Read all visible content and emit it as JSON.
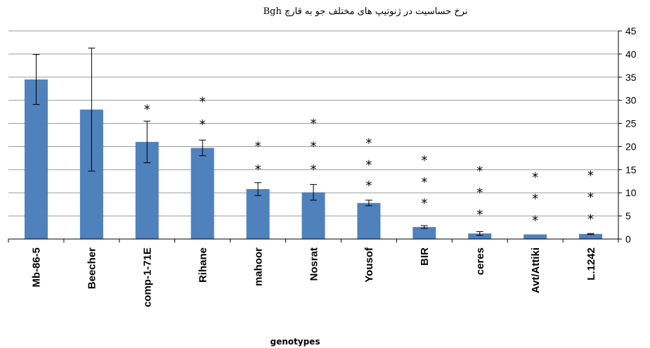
{
  "chart_data": {
    "type": "bar",
    "title": "نرخ حساسیت در ژنوتیپ های مختلف جو به قارچ Bgh",
    "xlabel": "genotypes",
    "ylabel": "",
    "ylim": [
      0,
      45
    ],
    "yticks": [
      "0",
      "5",
      "10",
      "15",
      "20",
      "25",
      "30",
      "35",
      "40",
      "45"
    ],
    "y_axis_side": "right",
    "bar_color": "#4f81bd",
    "categories": [
      "Mb-86-5",
      "Beecher",
      "comp-1-71E",
      "Rihane",
      "mahoor",
      "Nosrat",
      "Yousof",
      "BIR",
      "ceres",
      "Avt/Attiki",
      "L.1242"
    ],
    "values": [
      34.5,
      28,
      21,
      19.7,
      10.8,
      10.1,
      7.8,
      2.6,
      1.2,
      1,
      1.1
    ],
    "errors": [
      5.4,
      13.3,
      4.5,
      1.7,
      1.4,
      1.7,
      0.6,
      0.3,
      0.4,
      0,
      0.1
    ],
    "significance_marker": "*",
    "significance_stars_y": [
      [],
      [],
      [
        28.5
      ],
      [
        25.2,
        30.2
      ],
      [
        15.5,
        20.5
      ],
      [
        15.5,
        20.5,
        25.5
      ],
      [
        12,
        16.5,
        21.2
      ],
      [
        8.2,
        12.8,
        17.5
      ],
      [
        5.8,
        10.5,
        15.2
      ],
      [
        4.5,
        9.2,
        13.8
      ],
      [
        4.8,
        9.5,
        14.2
      ]
    ]
  }
}
